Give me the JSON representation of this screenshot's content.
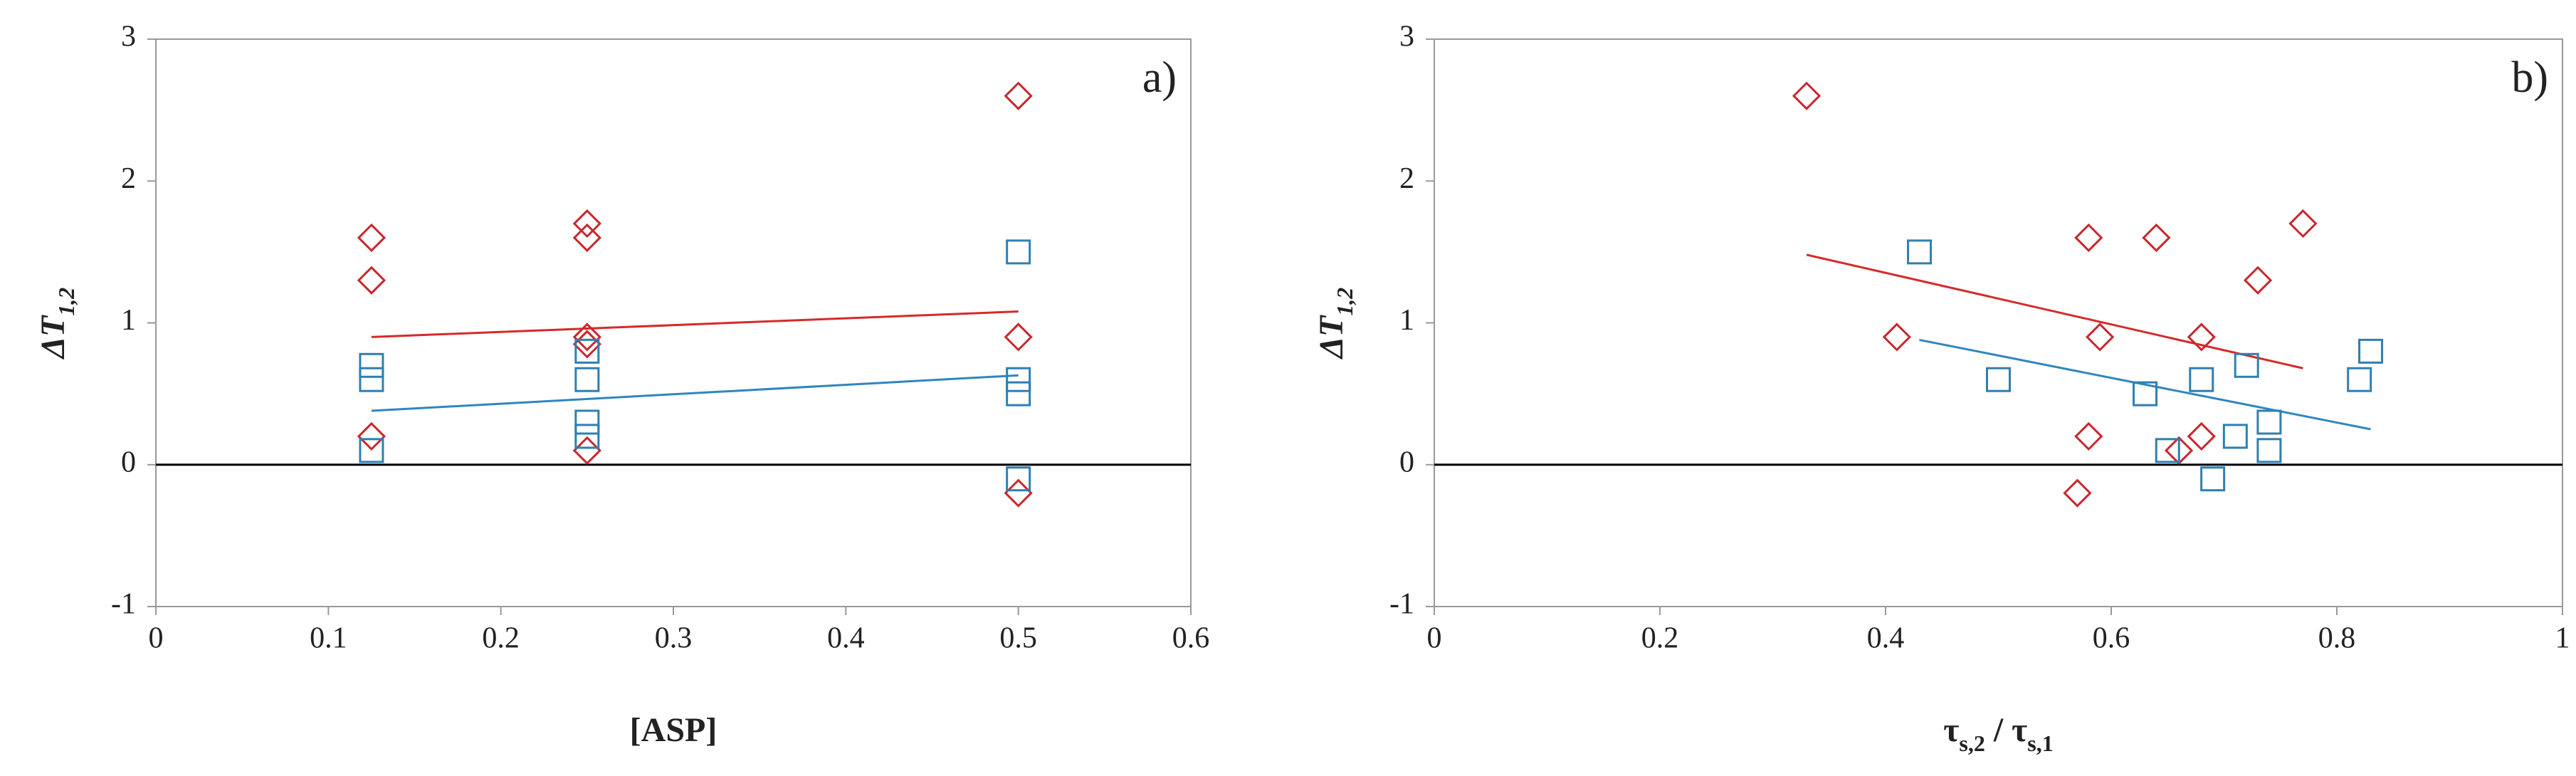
{
  "chart_data": [
    {
      "type": "scatter",
      "panel_label": "a)",
      "xlabel": "[ASP]",
      "ylabel": [
        "ΔT",
        "1,2"
      ],
      "xlim": [
        0,
        0.6
      ],
      "ylim": [
        -1,
        3
      ],
      "xticks": [
        0,
        0.1,
        0.2,
        0.3,
        0.4,
        0.5,
        0.6
      ],
      "yticks": [
        -1,
        0,
        1,
        2,
        3
      ],
      "hline": 0,
      "series": [
        {
          "color": "#c8282d",
          "marker": "diamond",
          "x": [
            0.125,
            0.125,
            0.125,
            0.25,
            0.25,
            0.25,
            0.25,
            0.25,
            0.5,
            0.5,
            0.5
          ],
          "values": [
            1.6,
            1.3,
            0.2,
            1.7,
            1.6,
            0.9,
            0.85,
            0.1,
            2.6,
            0.9,
            -0.2
          ]
        },
        {
          "color": "#2f7fb0",
          "marker": "square",
          "x": [
            0.125,
            0.125,
            0.125,
            0.25,
            0.25,
            0.25,
            0.25,
            0.5,
            0.5,
            0.5,
            0.5
          ],
          "values": [
            0.7,
            0.6,
            0.1,
            0.8,
            0.6,
            0.3,
            0.2,
            1.5,
            0.6,
            0.5,
            -0.1
          ]
        }
      ],
      "trendlines": [
        {
          "color": "#d62a2a",
          "x": [
            0.125,
            0.5
          ],
          "values": [
            0.9,
            1.08
          ]
        },
        {
          "color": "#2f86c0",
          "x": [
            0.125,
            0.5
          ],
          "values": [
            0.38,
            0.63
          ]
        }
      ]
    },
    {
      "type": "scatter",
      "panel_label": "b)",
      "xlabel": [
        "τ",
        "s,2",
        " / τ",
        "s,1"
      ],
      "ylabel": [
        "ΔT",
        "1,2"
      ],
      "xlim": [
        0,
        1
      ],
      "ylim": [
        -1,
        3
      ],
      "xticks": [
        0,
        0.2,
        0.4,
        0.6,
        0.8,
        1
      ],
      "yticks": [
        -1,
        0,
        1,
        2,
        3
      ],
      "hline": 0,
      "series": [
        {
          "color": "#c8282d",
          "marker": "diamond",
          "x": [
            0.33,
            0.41,
            0.57,
            0.58,
            0.58,
            0.59,
            0.64,
            0.66,
            0.68,
            0.68,
            0.73,
            0.77
          ],
          "values": [
            2.6,
            0.9,
            -0.2,
            1.6,
            0.2,
            0.9,
            1.6,
            0.1,
            0.9,
            0.2,
            1.3,
            1.7
          ]
        },
        {
          "color": "#2f7fb0",
          "marker": "square",
          "x": [
            0.43,
            0.5,
            0.63,
            0.65,
            0.68,
            0.69,
            0.71,
            0.72,
            0.74,
            0.74,
            0.82,
            0.83
          ],
          "values": [
            1.5,
            0.6,
            0.5,
            0.1,
            0.6,
            -0.1,
            0.2,
            0.7,
            0.3,
            0.1,
            0.6,
            0.8
          ]
        }
      ],
      "trendlines": [
        {
          "color": "#d62a2a",
          "x": [
            0.33,
            0.77
          ],
          "values": [
            1.48,
            0.68
          ]
        },
        {
          "color": "#2f86c0",
          "x": [
            0.43,
            0.83
          ],
          "values": [
            0.88,
            0.25
          ]
        }
      ]
    }
  ]
}
